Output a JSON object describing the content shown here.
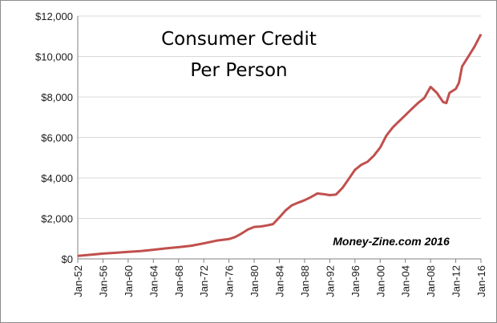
{
  "chart_data": {
    "type": "line",
    "title_line1": "Consumer Credit",
    "title_line2": "Per Person",
    "annotation": "Money-Zine.com 2016",
    "xlabel": "",
    "ylabel": "",
    "x_range": [
      1952,
      2016
    ],
    "ylim": [
      0,
      12000
    ],
    "y_ticks": [
      0,
      2000,
      4000,
      6000,
      8000,
      10000,
      12000
    ],
    "y_tick_labels": [
      "$0",
      "$2,000",
      "$4,000",
      "$6,000",
      "$8,000",
      "$10,000",
      "$12,000"
    ],
    "x_ticks": [
      1952,
      1956,
      1960,
      1964,
      1968,
      1972,
      1976,
      1980,
      1984,
      1988,
      1992,
      1996,
      2000,
      2004,
      2008,
      2012,
      2016
    ],
    "x_tick_labels": [
      "Jan-52",
      "Jan-56",
      "Jan-60",
      "Jan-64",
      "Jan-68",
      "Jan-72",
      "Jan-76",
      "Jan-80",
      "Jan-84",
      "Jan-88",
      "Jan-92",
      "Jan-96",
      "Jan-00",
      "Jan-04",
      "Jan-08",
      "Jan-12",
      "Jan-16"
    ],
    "grid": "horizontal",
    "line_color": "#c0504d",
    "series": [
      {
        "x": [
          1952,
          1954,
          1956,
          1958,
          1960,
          1962,
          1964,
          1966,
          1968,
          1970,
          1972,
          1974,
          1976,
          1977,
          1978,
          1979,
          1980,
          1981,
          1982,
          1983,
          1984,
          1985,
          1986,
          1987,
          1988,
          1989,
          1990,
          1991,
          1992,
          1993,
          1994,
          1995,
          1996,
          1997,
          1998,
          1999,
          2000,
          2001,
          2002,
          2003,
          2004,
          2005,
          2006,
          2007,
          2008,
          2009,
          2010,
          2010.5,
          2011,
          2012,
          2012.5,
          2013,
          2014,
          2015,
          2016
        ],
        "values": [
          150,
          200,
          260,
          300,
          350,
          390,
          450,
          520,
          580,
          650,
          770,
          900,
          980,
          1080,
          1250,
          1450,
          1580,
          1600,
          1650,
          1720,
          2050,
          2400,
          2650,
          2780,
          2900,
          3050,
          3230,
          3200,
          3150,
          3180,
          3500,
          3950,
          4400,
          4650,
          4800,
          5100,
          5500,
          6100,
          6500,
          6800,
          7100,
          7400,
          7700,
          7950,
          8500,
          8200,
          7750,
          7700,
          8200,
          8400,
          8700,
          9500,
          10000,
          10500,
          11100
        ]
      }
    ]
  }
}
